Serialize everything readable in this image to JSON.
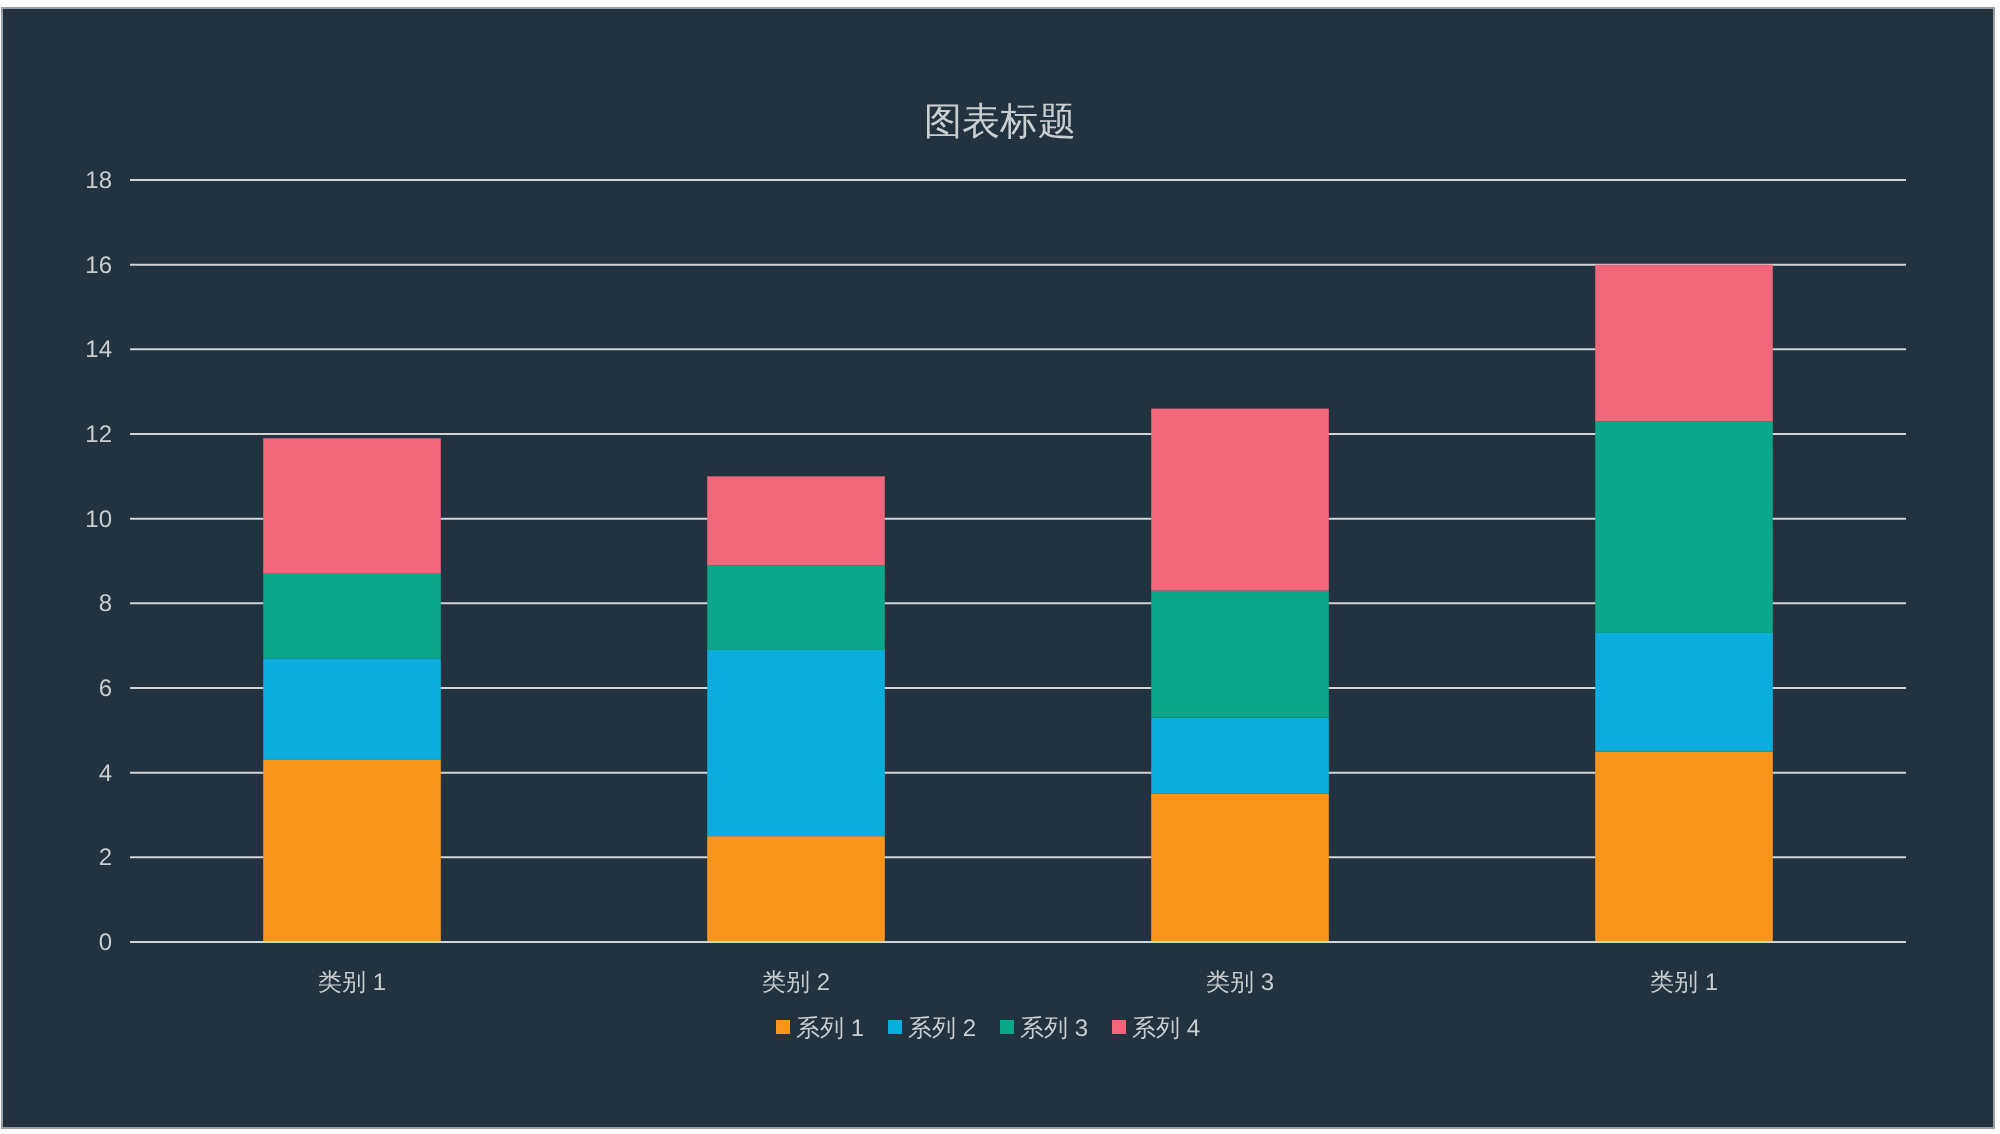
{
  "chart_data": {
    "type": "bar",
    "title": "图表标题",
    "stacked": true,
    "grid": "y",
    "legend": "bottom",
    "categories": [
      "类别 1",
      "类别 2",
      "类别 3",
      "类别 1"
    ],
    "ylim": [
      0,
      18
    ],
    "yticks": [
      0,
      2,
      4,
      6,
      8,
      10,
      12,
      14,
      16,
      18
    ],
    "series": [
      {
        "name": "系列 1",
        "color": "#f7951d",
        "values": [
          4.3,
          2.5,
          3.5,
          4.5
        ]
      },
      {
        "name": "系列 2",
        "color": "#0aaddb",
        "values": [
          2.4,
          4.4,
          1.8,
          2.8
        ]
      },
      {
        "name": "系列 3",
        "color": "#0ba589",
        "values": [
          2,
          2,
          3,
          5
        ]
      },
      {
        "name": "系列 4",
        "color": "#f0667a",
        "values": [
          3.2,
          2.1,
          4.3,
          3.7
        ]
      }
    ]
  }
}
